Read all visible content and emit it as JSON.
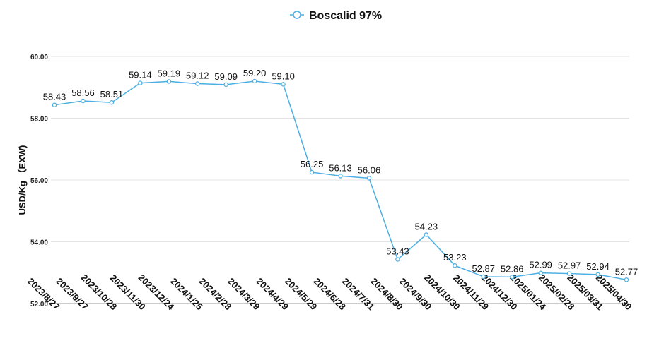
{
  "chart_data": {
    "type": "line",
    "title": "",
    "legend": {
      "position": "top-center",
      "entries": [
        "Boscalid 97%"
      ]
    },
    "xlabel": "",
    "ylabel": "USD/Kg （EXW)",
    "ylim": [
      52,
      60
    ],
    "yticks": [
      "52.00",
      "54.00",
      "56.00",
      "58.00",
      "60.00"
    ],
    "grid": true,
    "colors": {
      "series": "#4aaee3",
      "grid": "#e3e3e3",
      "axis": "#9a9a9a"
    },
    "categories": [
      "2023/8/27",
      "2023/9/27",
      "2023/10/28",
      "2023/11/30",
      "2023/12/24",
      "2024/1/25",
      "2024/2/28",
      "2024/3/29",
      "2024/4/29",
      "2024/5/29",
      "2024/6/28",
      "2024/7/31",
      "2024/8/30",
      "2024/9/30",
      "2024/10/30",
      "2024/11/29",
      "2024/12/30",
      "2025/01/24",
      "2025/02/28",
      "2025/03/31",
      "2025/04/30"
    ],
    "series": [
      {
        "name": "Boscalid 97%",
        "values": [
          58.43,
          58.56,
          58.51,
          59.14,
          59.19,
          59.12,
          59.09,
          59.2,
          59.1,
          56.25,
          56.13,
          56.06,
          53.43,
          54.23,
          53.23,
          52.87,
          52.86,
          52.99,
          52.97,
          52.94,
          52.77
        ],
        "labels": [
          "58.43",
          "58.56",
          "58.51",
          "59.14",
          "59.19",
          "59.12",
          "59.09",
          "59.20",
          "59.10",
          "56.25",
          "56.13",
          "56.06",
          "53.43",
          "54.23",
          "53.23",
          "52.87",
          "52.86",
          "52.99",
          "52.97",
          "52.94",
          "52.77"
        ]
      }
    ]
  }
}
